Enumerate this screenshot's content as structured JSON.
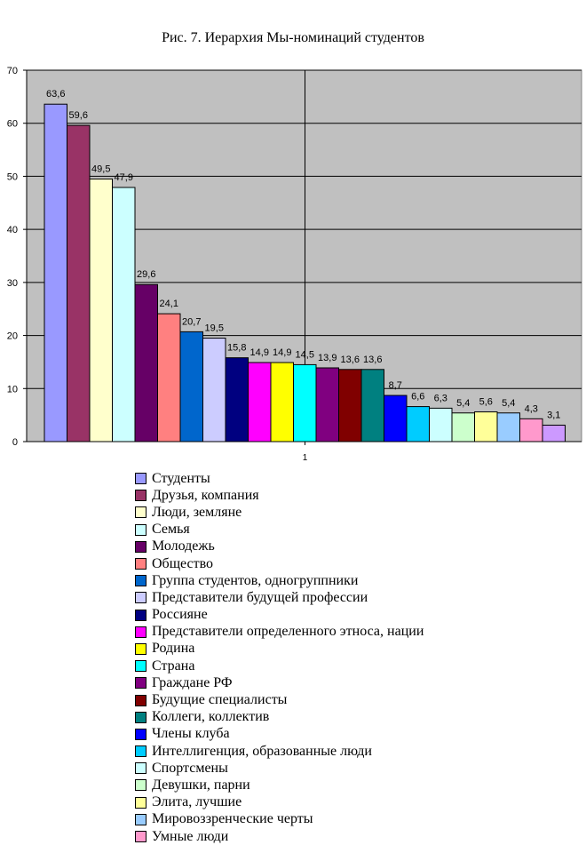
{
  "chart_data": {
    "type": "bar",
    "title": "Рис. 7. Иерархия Мы-номинаций студентов",
    "categories": [
      "1"
    ],
    "ylim": [
      0,
      70
    ],
    "yticks": [
      0,
      10,
      20,
      30,
      40,
      50,
      60,
      70
    ],
    "grid": true,
    "legend_position": "bottom",
    "series": [
      {
        "name": "Студенты",
        "values": [
          63.6
        ],
        "label": "63,6",
        "color": "#9999FF"
      },
      {
        "name": "Друзья, компания",
        "values": [
          59.6
        ],
        "label": "59,6",
        "color": "#993366"
      },
      {
        "name": "Люди, земляне",
        "values": [
          49.5
        ],
        "label": "49,5",
        "color": "#FFFFCC"
      },
      {
        "name": "Семья",
        "values": [
          47.9
        ],
        "label": "47,9",
        "color": "#CCFFFF"
      },
      {
        "name": "Молодежь",
        "values": [
          29.6
        ],
        "label": "29,6",
        "color": "#660066"
      },
      {
        "name": "Общество",
        "values": [
          24.1
        ],
        "label": "24,1",
        "color": "#FF8080"
      },
      {
        "name": "Группа студентов, одногруппники",
        "values": [
          20.7
        ],
        "label": "20,7",
        "color": "#0066CC"
      },
      {
        "name": "Представители будущей профессии",
        "values": [
          19.5
        ],
        "label": "19,5",
        "color": "#CCCCFF"
      },
      {
        "name": "Россияне",
        "values": [
          15.8
        ],
        "label": "15,8",
        "color": "#000080"
      },
      {
        "name": "Представители определенного этноса, нации",
        "values": [
          14.9
        ],
        "label": "14,9",
        "color": "#FF00FF"
      },
      {
        "name": "Родина",
        "values": [
          14.9
        ],
        "label": "14,9",
        "color": "#FFFF00"
      },
      {
        "name": "Страна",
        "values": [
          14.5
        ],
        "label": "14,5",
        "color": "#00FFFF"
      },
      {
        "name": "Граждане РФ",
        "values": [
          13.9
        ],
        "label": "13,9",
        "color": "#800080"
      },
      {
        "name": "Будущие специалисты",
        "values": [
          13.6
        ],
        "label": "13,6",
        "color": "#800000"
      },
      {
        "name": "Коллеги, коллектив",
        "values": [
          13.6
        ],
        "label": "13,6",
        "color": "#008080"
      },
      {
        "name": "Члены клуба",
        "values": [
          8.7
        ],
        "label": "8,7",
        "color": "#0000FF"
      },
      {
        "name": "Интеллигенция, образованные люди",
        "values": [
          6.6
        ],
        "label": "6,6",
        "color": "#00CCFF"
      },
      {
        "name": "Спортсмены",
        "values": [
          6.3
        ],
        "label": "6,3",
        "color": "#CCFFFF"
      },
      {
        "name": "Девушки, парни",
        "values": [
          5.4
        ],
        "label": "5,4",
        "color": "#CCFFCC"
      },
      {
        "name": "Элита, лучшие",
        "values": [
          5.6
        ],
        "label": "5,6",
        "color": "#FFFF99"
      },
      {
        "name": "Мировоззренческие черты",
        "values": [
          5.4
        ],
        "label": "5,4",
        "color": "#99CCFF"
      },
      {
        "name": "Умные люди",
        "values": [
          4.3
        ],
        "label": "4,3",
        "color": "#FF99CC"
      },
      {
        "name": "",
        "values": [
          3.1
        ],
        "label": "3,1",
        "color": "#CC99FF"
      }
    ],
    "plot_background": "#C0C0C0"
  }
}
